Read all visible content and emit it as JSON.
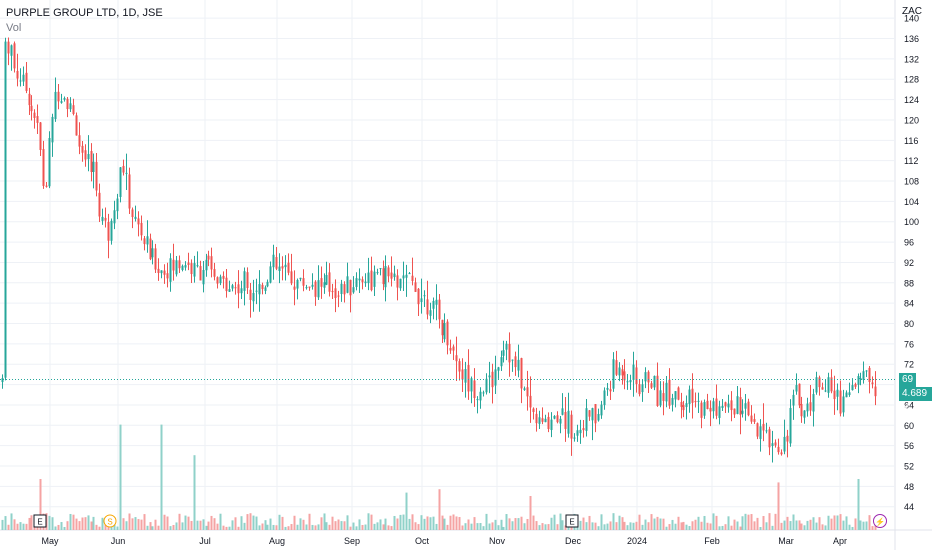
{
  "header": {
    "title": "PURPLE GROUP LTD, 1D, JSE",
    "volume_label": "Vol",
    "currency": "ZAC"
  },
  "price_badge": "69",
  "volume_badge": "4.689 M",
  "colors": {
    "up": "#26a69a",
    "down": "#ef5350",
    "up_volume": "#8fd1c9",
    "down_volume": "#f5a3a3",
    "grid": "#eef1f6",
    "axis_text": "#131722",
    "price_line": "#26a69a"
  },
  "event_markers": [
    {
      "label": "E",
      "date": "2023-05-03",
      "type": "earnings"
    },
    {
      "label": "S",
      "date": "2023-05-23",
      "type": "split"
    },
    {
      "label": "E",
      "date": "2023-11-28",
      "type": "earnings"
    },
    {
      "label": "⚡",
      "date": "2024-04-10",
      "type": "event"
    }
  ],
  "chart_data": {
    "type": "candlestick",
    "title": "PURPLE GROUP LTD, 1D, JSE",
    "currency": "ZAC",
    "x_ticks": [
      "May",
      "Jun",
      "Jul",
      "Aug",
      "Sep",
      "Oct",
      "Nov",
      "Dec",
      "2024",
      "Feb",
      "Mar",
      "Apr"
    ],
    "y_ticks": [
      44,
      48,
      52,
      56,
      60,
      64,
      68,
      72,
      76,
      80,
      84,
      88,
      92,
      96,
      100,
      104,
      108,
      112,
      116,
      120,
      124,
      128,
      132,
      136,
      140
    ],
    "ylim": [
      41,
      142
    ],
    "grid": true,
    "last_price": 69,
    "last_volume": "4.689 M",
    "approx_close_by_month": [
      {
        "month": "Apr",
        "close": 133
      },
      {
        "month": "May",
        "close": 112
      },
      {
        "month": "Jun",
        "close": 92
      },
      {
        "month": "Jul",
        "close": 88
      },
      {
        "month": "Aug",
        "close": 88
      },
      {
        "month": "Sep",
        "close": 89
      },
      {
        "month": "Oct",
        "close": 74
      },
      {
        "month": "Nov",
        "close": 64
      },
      {
        "month": "Dec",
        "close": 70
      },
      {
        "month": "2024",
        "close": 66
      },
      {
        "month": "Feb",
        "close": 60
      },
      {
        "month": "Mar",
        "close": 64
      },
      {
        "month": "Apr",
        "close": 69
      }
    ]
  }
}
